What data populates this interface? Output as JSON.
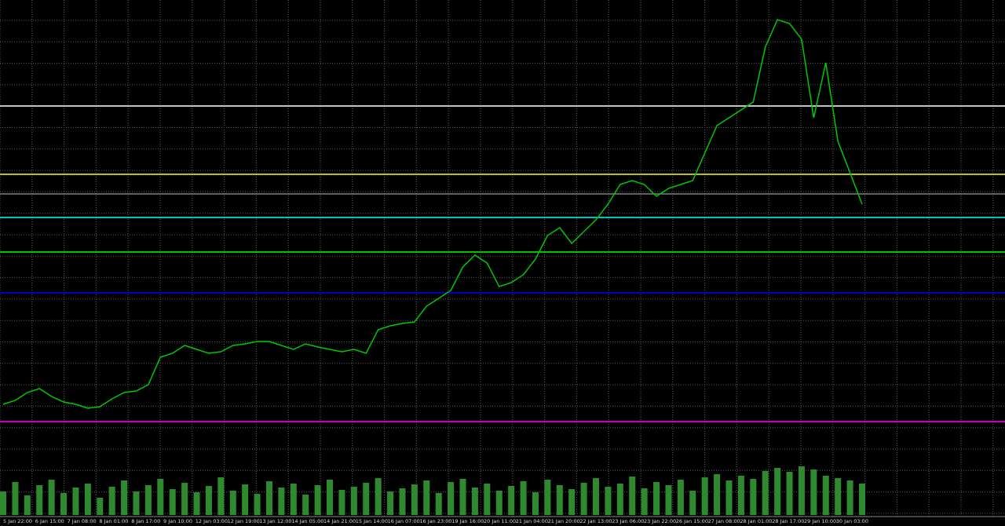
{
  "chart_data": {
    "type": "line",
    "color": "#00c800",
    "volume_color": "#2f8a2f",
    "x_labels": [
      "5 Jan 22:00",
      "6 Jan 15:00",
      "7 Jan 08:00",
      "8 Jan 01:00",
      "8 Jan 17:00",
      "9 Jan 10:00",
      "12 Jan 03:00",
      "12 Jan 19:00",
      "13 Jan 12:00",
      "14 Jan 05:00",
      "14 Jan 21:00",
      "15 Jan 14:00",
      "16 Jan 07:00",
      "16 Jan 23:00",
      "19 Jan 16:00",
      "20 Jan 11:00",
      "21 Jan 04:00",
      "21 Jan 20:00",
      "22 Jan 13:00",
      "23 Jan 06:00",
      "23 Jan 22:00",
      "26 Jan 15:00",
      "27 Jan 08:00",
      "28 Jan 01:00",
      "28 Jan 17:00",
      "29 Jan 10:00",
      "30 Jan 03:00"
    ],
    "values": [
      9,
      10,
      12,
      13,
      11,
      9.6,
      9,
      8,
      8.4,
      10.4,
      12,
      12.4,
      14,
      21,
      22,
      24,
      23,
      22,
      22.4,
      24,
      24.4,
      25,
      25,
      24,
      23,
      24.4,
      23.6,
      23,
      22.4,
      23,
      22,
      28,
      29,
      29.6,
      30,
      34,
      36,
      38,
      44,
      47,
      45,
      39,
      40,
      42,
      46,
      52,
      54,
      50,
      53,
      56,
      60,
      65,
      66,
      65,
      62,
      64,
      65,
      66,
      73,
      80,
      82,
      84,
      86,
      100,
      107,
      106,
      102,
      82,
      96,
      76,
      68,
      60
    ],
    "volume": [
      30,
      42,
      25,
      38,
      45,
      28,
      35,
      40,
      22,
      36,
      44,
      30,
      38,
      46,
      33,
      41,
      29,
      37,
      48,
      31,
      39,
      27,
      43,
      35,
      40,
      26,
      38,
      45,
      32,
      36,
      41,
      47,
      30,
      34,
      39,
      44,
      28,
      42,
      46,
      35,
      40,
      31,
      37,
      43,
      29,
      45,
      38,
      33,
      41,
      47,
      36,
      40,
      49,
      34,
      42,
      38,
      45,
      31,
      48,
      52,
      44,
      50,
      46,
      56,
      60,
      55,
      62,
      58,
      50,
      47,
      44,
      40
    ],
    "ylim": [
      0,
      110
    ],
    "vlim": [
      0,
      70
    ],
    "levels": [
      {
        "value": 85,
        "color": "#ffffff"
      },
      {
        "value": 67.6,
        "color": "#ffff00"
      },
      {
        "value": 62.6,
        "color": "#808080"
      },
      {
        "value": 56.6,
        "color": "#00ffff"
      },
      {
        "value": 47.8,
        "color": "#00ff00"
      },
      {
        "value": 37.4,
        "color": "#0000ff"
      },
      {
        "value": 4.6,
        "color": "#ff00ff"
      }
    ]
  }
}
